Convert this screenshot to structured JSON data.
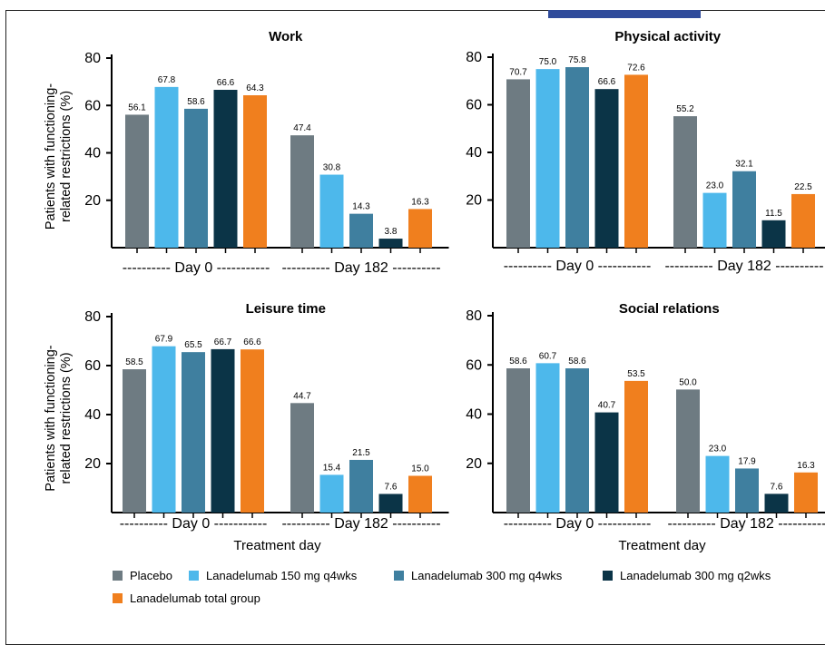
{
  "colors": {
    "placebo": "#6e7b82",
    "lan150_q4": "#4db8eb",
    "lan300_q4": "#3f7f9f",
    "lan300_q2": "#0b3447",
    "total": "#f07f1e"
  },
  "ylabel_line1": "Patients with functioning-",
  "ylabel_line2": "related restrictions (%)",
  "xlabel": "Treatment day",
  "group_labels": [
    "---------- Day 0 -----------",
    "---------- Day 182 ----------"
  ],
  "legend": [
    {
      "label": "Placebo",
      "color": "#6e7b82"
    },
    {
      "label": "Lanadelumab 150 mg q4wks",
      "color": "#4db8eb"
    },
    {
      "label": "Lanadelumab 300 mg q4wks",
      "color": "#3f7f9f"
    },
    {
      "label": "Lanadelumab 300 mg q2wks",
      "color": "#0b3447"
    },
    {
      "label": "Lanadelumab total group",
      "color": "#f07f1e"
    }
  ],
  "chart_data": [
    {
      "type": "bar",
      "title": "Work",
      "categories": [
        "Day 0",
        "Day 182"
      ],
      "ylim": [
        0,
        80
      ],
      "yticks": [
        20,
        40,
        60,
        80
      ],
      "ylabel": "Patients with functioning-related restrictions (%)",
      "xlabel": "",
      "series": [
        {
          "name": "Placebo",
          "values": [
            56.1,
            47.4
          ],
          "labels": [
            "56.1",
            "47.4"
          ]
        },
        {
          "name": "Lanadelumab 150 mg q4wks",
          "values": [
            67.8,
            30.8
          ],
          "labels": [
            "67.8",
            "30.8"
          ]
        },
        {
          "name": "Lanadelumab 300 mg q4wks",
          "values": [
            58.6,
            14.3
          ],
          "labels": [
            "58.6",
            "14.3"
          ]
        },
        {
          "name": "Lanadelumab 300 mg q2wks",
          "values": [
            66.6,
            3.8
          ],
          "labels": [
            "66.6",
            "3.8"
          ]
        },
        {
          "name": "Lanadelumab total group",
          "values": [
            64.3,
            16.3
          ],
          "labels": [
            "64.3",
            "16.3"
          ]
        }
      ]
    },
    {
      "type": "bar",
      "title": "Physical activity",
      "categories": [
        "Day 0",
        "Day 182"
      ],
      "ylim": [
        0,
        80
      ],
      "yticks": [
        20,
        40,
        60,
        80
      ],
      "ylabel": "",
      "xlabel": "",
      "series": [
        {
          "name": "Placebo",
          "values": [
            70.7,
            55.2
          ],
          "labels": [
            "70.7",
            "55.2"
          ]
        },
        {
          "name": "Lanadelumab 150 mg q4wks",
          "values": [
            75.0,
            23.0
          ],
          "labels": [
            "75.0",
            "23.0"
          ]
        },
        {
          "name": "Lanadelumab 300 mg q4wks",
          "values": [
            75.8,
            32.1
          ],
          "labels": [
            "75.8",
            "32.1"
          ]
        },
        {
          "name": "Lanadelumab 300 mg q2wks",
          "values": [
            66.6,
            11.5
          ],
          "labels": [
            "66.6",
            "11.5"
          ]
        },
        {
          "name": "Lanadelumab total group",
          "values": [
            72.6,
            22.5
          ],
          "labels": [
            "72.6",
            "22.5"
          ]
        }
      ]
    },
    {
      "type": "bar",
      "title": "Leisure time",
      "categories": [
        "Day 0",
        "Day 182"
      ],
      "ylim": [
        0,
        80
      ],
      "yticks": [
        20,
        40,
        60,
        80
      ],
      "ylabel": "Patients with functioning-related restrictions (%)",
      "xlabel": "Treatment day",
      "series": [
        {
          "name": "Placebo",
          "values": [
            58.5,
            44.7
          ],
          "labels": [
            "58.5",
            "44.7"
          ]
        },
        {
          "name": "Lanadelumab 150 mg q4wks",
          "values": [
            67.9,
            15.4
          ],
          "labels": [
            "67.9",
            "15.4"
          ]
        },
        {
          "name": "Lanadelumab 300 mg q4wks",
          "values": [
            65.5,
            21.5
          ],
          "labels": [
            "65.5",
            "21.5"
          ]
        },
        {
          "name": "Lanadelumab 300 mg q2wks",
          "values": [
            66.7,
            7.6
          ],
          "labels": [
            "66.7",
            "7.6"
          ]
        },
        {
          "name": "Lanadelumab total group",
          "values": [
            66.6,
            15.0
          ],
          "labels": [
            "66.6",
            "15.0"
          ]
        }
      ]
    },
    {
      "type": "bar",
      "title": "Social relations",
      "categories": [
        "Day 0",
        "Day 182"
      ],
      "ylim": [
        0,
        80
      ],
      "yticks": [
        20,
        40,
        60,
        80
      ],
      "ylabel": "",
      "xlabel": "Treatment day",
      "series": [
        {
          "name": "Placebo",
          "values": [
            58.6,
            50.0
          ],
          "labels": [
            "58.6",
            "50.0"
          ]
        },
        {
          "name": "Lanadelumab 150 mg q4wks",
          "values": [
            60.7,
            23.0
          ],
          "labels": [
            "60.7",
            "23.0"
          ]
        },
        {
          "name": "Lanadelumab 300 mg q4wks",
          "values": [
            58.6,
            17.9
          ],
          "labels": [
            "58.6",
            "17.9"
          ]
        },
        {
          "name": "Lanadelumab 300 mg q2wks",
          "values": [
            40.7,
            7.6
          ],
          "labels": [
            "40.7",
            "7.6"
          ]
        },
        {
          "name": "Lanadelumab total group",
          "values": [
            53.5,
            16.3
          ],
          "labels": [
            "53.5",
            "16.3"
          ]
        }
      ]
    }
  ]
}
